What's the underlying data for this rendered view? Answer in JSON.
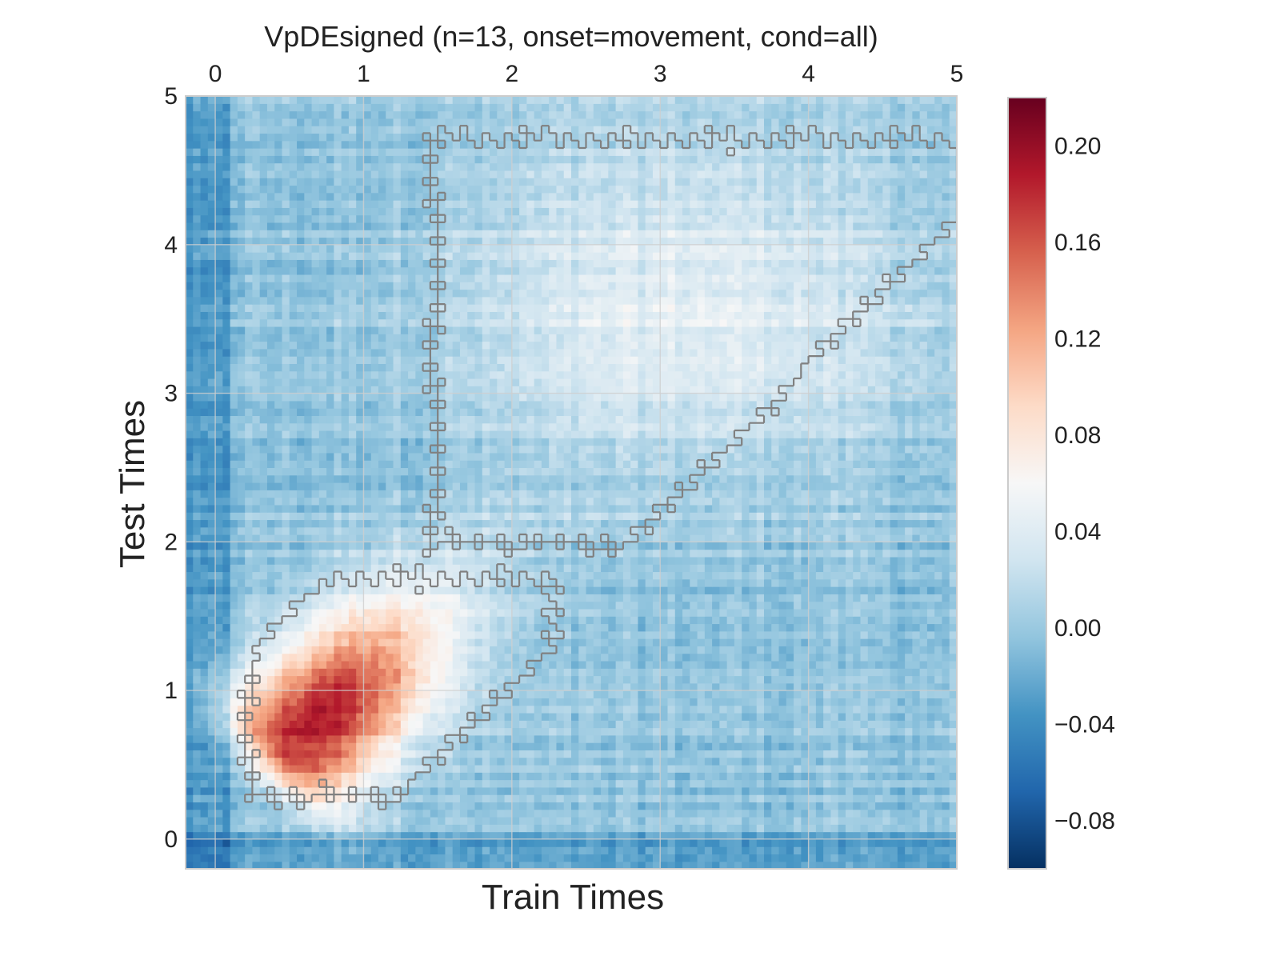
{
  "chart_data": {
    "type": "heatmap",
    "title": "VpDEsigned (n=13, onset=movement, cond=all)",
    "xlabel": "Train Times",
    "ylabel": "Test Times",
    "x_range": [
      -0.2,
      5.0
    ],
    "y_range": [
      -0.2,
      5.0
    ],
    "x_ticks": [
      "0",
      "1",
      "2",
      "3",
      "4",
      "5"
    ],
    "x_tick_values": [
      0,
      1,
      2,
      3,
      4,
      5
    ],
    "y_ticks": [
      "0",
      "1",
      "2",
      "3",
      "4",
      "5"
    ],
    "y_tick_values": [
      0,
      1,
      2,
      3,
      4,
      5
    ],
    "x_tick_position": "top",
    "grid": true,
    "colormap": "RdBu_r",
    "colormap_stops": [
      "#053061",
      "#2166ac",
      "#4393c3",
      "#92c5de",
      "#d1e5f0",
      "#f7f7f7",
      "#fddbc7",
      "#f4a582",
      "#d6604d",
      "#b2182b",
      "#67001f"
    ],
    "contour_color": "#808080",
    "colorbar": {
      "vmin": -0.1,
      "vmax": 0.22,
      "ticks": [
        -0.08,
        -0.04,
        0.0,
        0.04,
        0.08,
        0.12,
        0.16,
        0.2
      ],
      "tick_labels": [
        "−0.08",
        "−0.04",
        "0.00",
        "0.04",
        "0.08",
        "0.12",
        "0.16",
        "0.20"
      ]
    },
    "regions": [
      {
        "kind": "significant-cluster",
        "x": [
          0.15,
          2.35
        ],
        "y": [
          0.2,
          1.85
        ],
        "peak_value": 0.19,
        "peak_at": [
          0.7,
          0.8
        ]
      },
      {
        "kind": "significant-cluster",
        "x": [
          1.4,
          5.0
        ],
        "y": [
          1.9,
          4.8
        ],
        "peak_value": 0.05
      }
    ],
    "background_value": 0.0
  }
}
